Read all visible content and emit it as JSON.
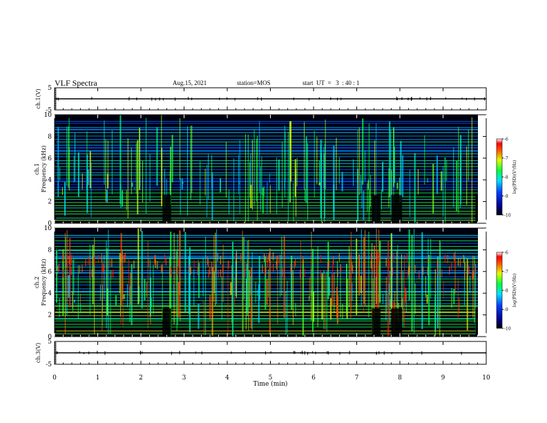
{
  "header": {
    "title": "VLF Spectra",
    "date": "Aug.15, 2021",
    "station": "station=MOS",
    "start": "start  UT  =   3  : 40 : 1"
  },
  "chart_data": [
    {
      "type": "line",
      "name": "ch1-voltage",
      "ylabel": "ch.1(V)",
      "ylim": [
        -5,
        5
      ],
      "yticks": [
        "5",
        "-5"
      ],
      "xlim": [
        0,
        10
      ],
      "x": [
        0,
        10
      ],
      "values": [
        0,
        0
      ]
    },
    {
      "type": "heatmap",
      "name": "ch1-spectrogram",
      "ylabel": "ch.1\nFrequency  (kHz)",
      "ylim": [
        0,
        10
      ],
      "yticks": [
        "0",
        "2",
        "4",
        "6",
        "8",
        "10"
      ],
      "xlim": [
        0,
        10
      ],
      "colorbar": {
        "label": "log(PSD)(V²/Hz)",
        "range": [
          -10,
          -6
        ],
        "ticks": [
          "-6",
          "-7",
          "-8",
          "-9",
          "-10"
        ]
      }
    },
    {
      "type": "heatmap",
      "name": "ch2-spectrogram",
      "ylabel": "ch.2\nFrequency  (kHz)",
      "ylim": [
        0,
        10
      ],
      "yticks": [
        "0",
        "2",
        "4",
        "6",
        "8",
        "10"
      ],
      "xlim": [
        0,
        10
      ],
      "colorbar": {
        "label": "log(PSD)(V²/Hz)",
        "range": [
          -10,
          -6
        ],
        "ticks": [
          "-6",
          "-7",
          "-8",
          "-9",
          "-10"
        ]
      }
    },
    {
      "type": "line",
      "name": "ch3-voltage",
      "ylabel": "ch.3(V)",
      "ylim": [
        -5,
        5
      ],
      "yticks": [
        "5",
        "-5"
      ],
      "xlim": [
        0,
        10
      ],
      "x": [
        0,
        10
      ],
      "values": [
        0,
        0
      ]
    }
  ],
  "xaxis": {
    "label": "Time  (min)",
    "ticks": [
      "0",
      "1",
      "2",
      "3",
      "4",
      "5",
      "6",
      "7",
      "8",
      "9",
      "10"
    ]
  },
  "colors": {
    "background": "#000000",
    "colormap": [
      "#000080",
      "#0000ff",
      "#00c0ff",
      "#00ff80",
      "#c0ff00",
      "#ff8000",
      "#ff0000",
      "#ffffff"
    ]
  }
}
